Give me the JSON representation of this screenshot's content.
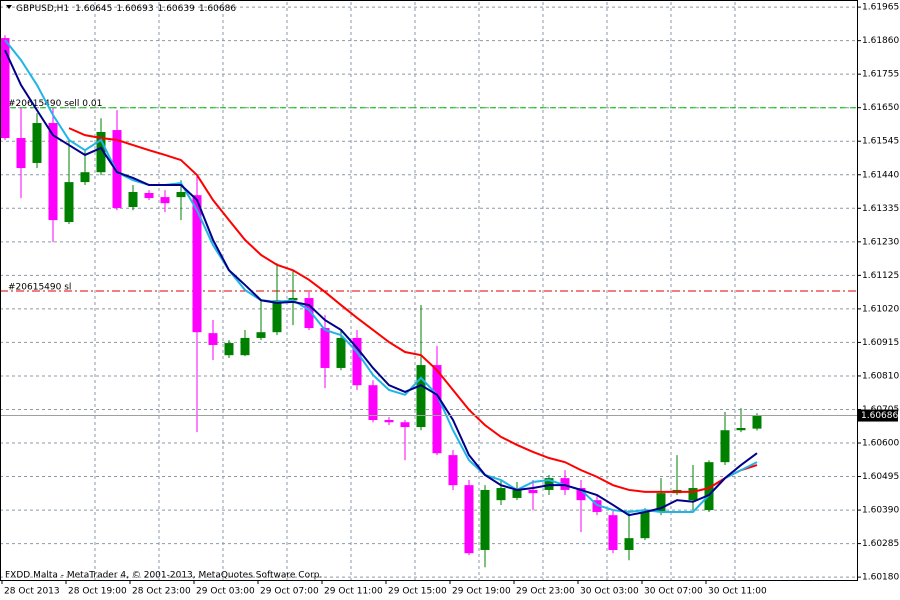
{
  "chart_data": {
    "type": "candlestick",
    "title": "GBPUSD,H1",
    "footer": "FXDD Malta - MetaTrader 4, © 2001-2013, MetaQuotes Software Corp.",
    "categories": [
      "28 Oct 2013",
      null,
      null,
      null,
      "28 Oct 19:00",
      null,
      null,
      null,
      "28 Oct 23:00",
      null,
      null,
      null,
      "29 Oct 03:00",
      null,
      null,
      null,
      "29 Oct 07:00",
      null,
      null,
      null,
      "29 Oct 11:00",
      null,
      null,
      null,
      "29 Oct 15:00",
      null,
      null,
      null,
      "29 Oct 19:00",
      null,
      null,
      null,
      "29 Oct 23:00",
      null,
      null,
      null,
      "30 Oct 03:00",
      null,
      null,
      null,
      "30 Oct 07:00",
      null,
      null,
      null,
      "30 Oct 11:00",
      null,
      null,
      null
    ],
    "open": [
      1.61868,
      1.61555,
      1.61477,
      1.61602,
      1.61292,
      1.61417,
      1.61448,
      1.6158,
      1.61339,
      1.61383,
      1.6137,
      1.6137,
      1.61376,
      1.60944,
      1.60875,
      1.60875,
      1.60929,
      1.60947,
      1.61047,
      1.61054,
      1.6096,
      1.60835,
      1.60929,
      1.60781,
      1.60672,
      1.60665,
      1.6065,
      1.60844,
      1.60562,
      1.60468,
      1.60265,
      1.60421,
      1.60428,
      1.60453,
      1.60453,
      1.6049,
      1.60459,
      1.60421,
      1.60374,
      1.60265,
      1.60302,
      1.60384,
      1.60443,
      1.60421,
      1.6039,
      1.6054,
      1.6064,
      1.60645
    ],
    "high": [
      1.61877,
      1.61649,
      1.61633,
      1.61649,
      1.61549,
      1.61517,
      1.61617,
      1.61642,
      1.61408,
      1.61392,
      1.61392,
      1.61423,
      1.61439,
      1.60985,
      1.60922,
      1.60954,
      1.61047,
      1.61163,
      1.61141,
      1.61073,
      1.61001,
      1.60954,
      1.60954,
      1.60797,
      1.60681,
      1.60672,
      1.61032,
      1.60904,
      1.60578,
      1.60484,
      1.60468,
      1.60484,
      1.60478,
      1.60484,
      1.605,
      1.60515,
      1.60484,
      1.60437,
      1.6039,
      1.6039,
      1.60396,
      1.6049,
      1.60562,
      1.60531,
      1.60546,
      1.60697,
      1.60709,
      1.60693
    ],
    "low": [
      1.61549,
      1.61367,
      1.61461,
      1.61229,
      1.61286,
      1.61408,
      1.61439,
      1.61329,
      1.61329,
      1.61361,
      1.61323,
      1.61298,
      1.60634,
      1.6086,
      1.60866,
      1.60872,
      1.60922,
      1.60938,
      1.60969,
      1.60954,
      1.60772,
      1.60828,
      1.60766,
      1.60665,
      1.60656,
      1.60546,
      1.6064,
      1.60562,
      1.60453,
      1.60249,
      1.60211,
      1.60406,
      1.60421,
      1.6039,
      1.60437,
      1.60437,
      1.60321,
      1.60374,
      1.60255,
      1.60233,
      1.60296,
      1.60374,
      1.60437,
      1.6039,
      1.60384,
      1.60531,
      1.60634,
      1.60639
    ],
    "close": [
      1.61555,
      1.61461,
      1.61602,
      1.61298,
      1.61417,
      1.61448,
      1.61574,
      1.61336,
      1.61386,
      1.61367,
      1.61351,
      1.61386,
      1.60947,
      1.60907,
      1.60913,
      1.60929,
      1.60947,
      1.61047,
      1.61054,
      1.6096,
      1.60835,
      1.60929,
      1.60781,
      1.60672,
      1.60665,
      1.6065,
      1.60844,
      1.60568,
      1.60468,
      1.60255,
      1.60453,
      1.60459,
      1.60453,
      1.60443,
      1.6049,
      1.60453,
      1.60421,
      1.60384,
      1.60265,
      1.60302,
      1.60384,
      1.60443,
      1.60453,
      1.60459,
      1.6054,
      1.6064,
      1.60647,
      1.60686
    ],
    "up_color": "#008000",
    "down_color": "#ff00ff",
    "indicators": [
      {
        "color": "#ff0000",
        "values": [
          null,
          null,
          null,
          null,
          1.61586,
          1.61564,
          1.61555,
          1.61549,
          1.61533,
          1.61517,
          1.61502,
          1.61486,
          1.61439,
          1.61361,
          1.61298,
          1.61236,
          1.61189,
          1.61158,
          1.61141,
          1.61111,
          1.61073,
          1.61032,
          1.60992,
          1.60954,
          1.60916,
          1.60885,
          1.60875,
          1.60828,
          1.60766,
          1.60704,
          1.60656,
          1.60619,
          1.60594,
          1.60572,
          1.60553,
          1.6054,
          1.60515,
          1.60494,
          1.60468,
          1.60453,
          1.60447,
          1.60447,
          1.60447,
          1.60447,
          1.60459,
          1.6049,
          1.60515,
          1.60531
        ]
      },
      {
        "color": "#1fb5e6",
        "values": [
          1.61862,
          1.61799,
          1.61721,
          1.61627,
          1.61549,
          1.61517,
          1.61549,
          1.61448,
          1.61423,
          1.61408,
          1.61408,
          1.61414,
          1.61329,
          1.6122,
          1.61141,
          1.61079,
          1.61047,
          1.61042,
          1.61047,
          1.61017,
          1.60954,
          1.60938,
          1.60885,
          1.60813,
          1.60766,
          1.60751,
          1.60804,
          1.60751,
          1.6064,
          1.60546,
          1.605,
          1.60484,
          1.60453,
          1.60478,
          1.60484,
          1.60468,
          1.60453,
          1.60406,
          1.6039,
          1.60384,
          1.6039,
          1.60384,
          1.60384,
          1.60384,
          1.60437,
          1.6049,
          1.60515,
          1.6054
        ]
      },
      {
        "color": "#00008b",
        "values": [
          1.6183,
          1.61721,
          1.61642,
          1.61564,
          1.61533,
          1.61502,
          1.61524,
          1.61448,
          1.6143,
          1.61408,
          1.61408,
          1.61408,
          1.61361,
          1.61236,
          1.61141,
          1.61095,
          1.61047,
          1.61039,
          1.61042,
          1.61032,
          1.60985,
          1.60954,
          1.60898,
          1.60835,
          1.60781,
          1.6076,
          1.60781,
          1.60751,
          1.60672,
          1.60562,
          1.605,
          1.60468,
          1.60453,
          1.60459,
          1.60468,
          1.60468,
          1.60453,
          1.60437,
          1.60406,
          1.60374,
          1.60384,
          1.60396,
          1.60421,
          1.60416,
          1.60437,
          1.6049,
          1.60531,
          1.60568
        ]
      }
    ],
    "orders": [
      {
        "label": "#20615490 sell 0.01",
        "value": 1.6165,
        "color": "#00c000",
        "dash": "6 4"
      },
      {
        "label": "#20615490 sl",
        "value": 1.61076,
        "color": "#e00000",
        "dash": "8 3 2 3"
      }
    ],
    "ylim": [
      1.60171,
      1.61981
    ],
    "yticks": [
      1.61965,
      {
        "value": 1.6186,
        "label": "1.61860"
      },
      1.61755,
      {
        "value": 1.6165,
        "label": "1.61650"
      },
      1.61545,
      {
        "value": 1.6144,
        "label": "1.61440"
      },
      1.61335,
      {
        "value": 1.6123,
        "label": "1.61230"
      },
      1.61125,
      {
        "value": 1.6102,
        "label": "1.61020"
      },
      1.60915,
      {
        "value": 1.6081,
        "label": "1.60810"
      },
      1.60705,
      {
        "value": 1.606,
        "label": "1.60600"
      },
      1.60495,
      {
        "value": 1.6039,
        "label": "1.60390"
      },
      1.60285,
      {
        "value": 1.6018,
        "label": "1.60180"
      }
    ],
    "grid": true
  }
}
